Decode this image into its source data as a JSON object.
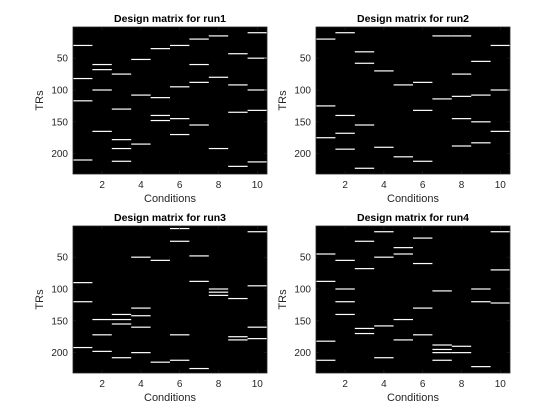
{
  "colors": {
    "background": "#000000",
    "event": "#ffffff",
    "axis": "#262626"
  },
  "chart_data": [
    {
      "type": "heatmap",
      "title": "Design matrix for run1",
      "xlabel": "Conditions",
      "ylabel": "TRs",
      "xlim": [
        0.5,
        10.5
      ],
      "ylim": [
        1,
        232
      ],
      "y_direction": "reversed",
      "xticks": [
        2,
        4,
        6,
        8,
        10
      ],
      "yticks": [
        50,
        100,
        150,
        200
      ],
      "xtick_labels": [
        "2",
        "4",
        "6",
        "8",
        "10"
      ],
      "ytick_labels": [
        "50",
        "100",
        "150",
        "200"
      ],
      "events": [
        {
          "condition": 1,
          "trs": [
            30,
            82,
            117,
            210
          ]
        },
        {
          "condition": 2,
          "trs": [
            60,
            68,
            100,
            165
          ]
        },
        {
          "condition": 3,
          "trs": [
            75,
            130,
            178,
            192,
            212
          ]
        },
        {
          "condition": 4,
          "trs": [
            52,
            108,
            185
          ]
        },
        {
          "condition": 5,
          "trs": [
            35,
            112,
            140,
            148
          ]
        },
        {
          "condition": 6,
          "trs": [
            30,
            95,
            145,
            170
          ]
        },
        {
          "condition": 7,
          "trs": [
            20,
            60,
            88,
            155
          ]
        },
        {
          "condition": 8,
          "trs": [
            15,
            80,
            192
          ]
        },
        {
          "condition": 9,
          "trs": [
            43,
            92,
            135,
            220
          ]
        },
        {
          "condition": 10,
          "trs": [
            10,
            50,
            100,
            132,
            213
          ]
        }
      ]
    },
    {
      "type": "heatmap",
      "title": "Design matrix for run2",
      "xlabel": "Conditions",
      "ylabel": "TRs",
      "xlim": [
        0.5,
        10.5
      ],
      "ylim": [
        1,
        232
      ],
      "y_direction": "reversed",
      "xticks": [
        2,
        4,
        6,
        8,
        10
      ],
      "yticks": [
        50,
        100,
        150,
        200
      ],
      "xtick_labels": [
        "2",
        "4",
        "6",
        "8",
        "10"
      ],
      "ytick_labels": [
        "50",
        "100",
        "150",
        "200"
      ],
      "events": [
        {
          "condition": 1,
          "trs": [
            20,
            125,
            175
          ]
        },
        {
          "condition": 2,
          "trs": [
            10,
            140,
            168,
            193
          ]
        },
        {
          "condition": 3,
          "trs": [
            40,
            58,
            155,
            223
          ]
        },
        {
          "condition": 4,
          "trs": [
            70,
            190
          ]
        },
        {
          "condition": 5,
          "trs": [
            92,
            205
          ]
        },
        {
          "condition": 6,
          "trs": [
            88,
            132,
            212
          ]
        },
        {
          "condition": 7,
          "trs": [
            15,
            114
          ]
        },
        {
          "condition": 8,
          "trs": [
            15,
            75,
            110,
            145,
            188
          ]
        },
        {
          "condition": 9,
          "trs": [
            55,
            108,
            150,
            183
          ]
        },
        {
          "condition": 10,
          "trs": [
            30,
            100,
            165
          ]
        }
      ]
    },
    {
      "type": "heatmap",
      "title": "Design matrix for run3",
      "xlabel": "Conditions",
      "ylabel": "TRs",
      "xlim": [
        0.5,
        10.5
      ],
      "ylim": [
        1,
        232
      ],
      "y_direction": "reversed",
      "xticks": [
        2,
        4,
        6,
        8,
        10
      ],
      "yticks": [
        50,
        100,
        150,
        200
      ],
      "xtick_labels": [
        "2",
        "4",
        "6",
        "8",
        "10"
      ],
      "ytick_labels": [
        "50",
        "100",
        "150",
        "200"
      ],
      "events": [
        {
          "condition": 1,
          "trs": [
            90,
            120,
            192
          ]
        },
        {
          "condition": 2,
          "trs": [
            148,
            172,
            198
          ]
        },
        {
          "condition": 3,
          "trs": [
            140,
            148,
            155,
            208
          ]
        },
        {
          "condition": 4,
          "trs": [
            50,
            130,
            142,
            160,
            200
          ]
        },
        {
          "condition": 5,
          "trs": [
            55,
            215
          ]
        },
        {
          "condition": 6,
          "trs": [
            5,
            25,
            172,
            212
          ]
        },
        {
          "condition": 7,
          "trs": [
            48,
            88,
            225
          ]
        },
        {
          "condition": 8,
          "trs": [
            100,
            105,
            110
          ]
        },
        {
          "condition": 9,
          "trs": [
            115,
            175,
            180
          ]
        },
        {
          "condition": 10,
          "trs": [
            10,
            95,
            160,
            178
          ]
        }
      ]
    },
    {
      "type": "heatmap",
      "title": "Design matrix for run4",
      "xlabel": "Conditions",
      "ylabel": "TRs",
      "xlim": [
        0.5,
        10.5
      ],
      "ylim": [
        1,
        232
      ],
      "y_direction": "reversed",
      "xticks": [
        2,
        4,
        6,
        8,
        10
      ],
      "yticks": [
        50,
        100,
        150,
        200
      ],
      "xtick_labels": [
        "2",
        "4",
        "6",
        "8",
        "10"
      ],
      "ytick_labels": [
        "50",
        "100",
        "150",
        "200"
      ],
      "events": [
        {
          "condition": 1,
          "trs": [
            45,
            88,
            182,
            212
          ]
        },
        {
          "condition": 2,
          "trs": [
            55,
            100,
            120,
            140
          ]
        },
        {
          "condition": 3,
          "trs": [
            25,
            68,
            162,
            170
          ]
        },
        {
          "condition": 4,
          "trs": [
            10,
            50,
            158,
            208
          ]
        },
        {
          "condition": 5,
          "trs": [
            35,
            45,
            148,
            180
          ]
        },
        {
          "condition": 6,
          "trs": [
            20,
            60,
            130,
            172
          ]
        },
        {
          "condition": 7,
          "trs": [
            103,
            188,
            195,
            200,
            212
          ]
        },
        {
          "condition": 8,
          "trs": [
            190,
            200
          ]
        },
        {
          "condition": 9,
          "trs": [
            100,
            120,
            222
          ]
        },
        {
          "condition": 10,
          "trs": [
            10,
            70,
            122
          ]
        }
      ]
    }
  ]
}
